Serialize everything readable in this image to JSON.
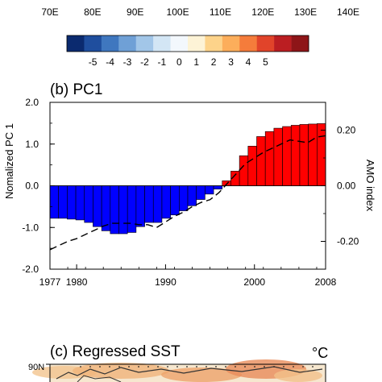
{
  "top_axis": {
    "tick_labels": [
      "70E",
      "80E",
      "90E",
      "100E",
      "110E",
      "120E",
      "130E",
      "140E"
    ]
  },
  "colorbar": {
    "labels": [
      "-5",
      "-4",
      "-3",
      "-2",
      "-1",
      "0",
      "1",
      "2",
      "3",
      "4",
      "5"
    ],
    "colors": [
      "#0b2a6f",
      "#1f4e9e",
      "#3f77bf",
      "#6fa0d6",
      "#a2c6e8",
      "#d3e6f5",
      "#f3f8fd",
      "#fdf3d6",
      "#fdd38a",
      "#fcae5b",
      "#f57c3b",
      "#e1442a",
      "#bb1e22",
      "#8e1518"
    ]
  },
  "panel_b": {
    "title": "(b) PC1",
    "ylabel": "Nomalized PC 1",
    "ylabel_right": "AMO index"
  },
  "panel_c": {
    "title": "(c) Regressed SST",
    "unit": "°C",
    "lat_label": "90N"
  },
  "chart_data": {
    "type": "bar",
    "x": [
      1977,
      1978,
      1979,
      1980,
      1981,
      1982,
      1983,
      1984,
      1985,
      1986,
      1987,
      1988,
      1989,
      1990,
      1991,
      1992,
      1993,
      1994,
      1995,
      1996,
      1997,
      1998,
      1999,
      2000,
      2001,
      2002,
      2003,
      2004,
      2005,
      2006,
      2007,
      2008
    ],
    "series": [
      {
        "name": "PC1",
        "axis": "left",
        "values": [
          -0.78,
          -0.78,
          -0.8,
          -0.82,
          -0.88,
          -0.98,
          -1.08,
          -1.15,
          -1.15,
          -1.12,
          -0.98,
          -0.88,
          -0.88,
          -0.78,
          -0.7,
          -0.6,
          -0.48,
          -0.33,
          -0.2,
          -0.08,
          0.12,
          0.35,
          0.72,
          0.95,
          1.18,
          1.3,
          1.38,
          1.42,
          1.45,
          1.47,
          1.48,
          1.49
        ],
        "positive_color": "#ff0000",
        "negative_color": "#0000ff"
      },
      {
        "name": "AMO index",
        "axis": "right",
        "style": "dashed",
        "values": [
          -0.23,
          -0.215,
          -0.2,
          -0.19,
          -0.175,
          -0.16,
          -0.145,
          -0.135,
          -0.135,
          -0.135,
          -0.14,
          -0.14,
          -0.15,
          -0.13,
          -0.11,
          -0.095,
          -0.075,
          -0.06,
          -0.05,
          -0.025,
          0.01,
          0.045,
          0.08,
          0.1,
          0.12,
          0.135,
          0.15,
          0.165,
          0.16,
          0.155,
          0.175,
          0.18
        ]
      }
    ],
    "xlim": [
      1977,
      2008
    ],
    "ylim": [
      -2.0,
      2.0
    ],
    "ylim_right": [
      -0.3,
      0.3
    ],
    "x_tick_labels": [
      "1977",
      "1980",
      "1990",
      "2000",
      "2008"
    ],
    "y_tick_labels": [
      "2.0",
      "1.0",
      "0.0",
      "-1.0",
      "-2.0"
    ],
    "y_right_tick_labels": [
      "0.20",
      "0.00",
      "-0.20"
    ],
    "grid": false
  }
}
